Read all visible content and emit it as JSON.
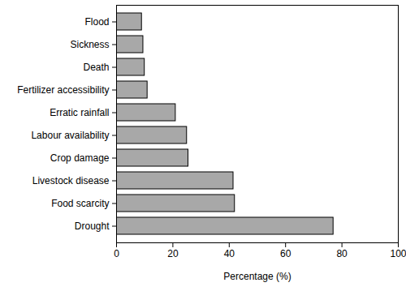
{
  "chart_data": {
    "type": "bar",
    "orientation": "horizontal",
    "categories": [
      "Flood",
      "Sickness",
      "Death",
      "Fertilizer accessibility",
      "Erratic rainfall",
      "Labour availability",
      "Crop damage",
      "Livestock disease",
      "Food scarcity",
      "Drought"
    ],
    "values": [
      9,
      9.5,
      10,
      11,
      21,
      25,
      25.5,
      41.5,
      42,
      77
    ],
    "color": "#a8a8a8",
    "x_label": "Percentage (%)",
    "xlim": [
      0,
      100
    ],
    "xticks": [
      0,
      20,
      40,
      60,
      80,
      100
    ],
    "grid": false
  }
}
